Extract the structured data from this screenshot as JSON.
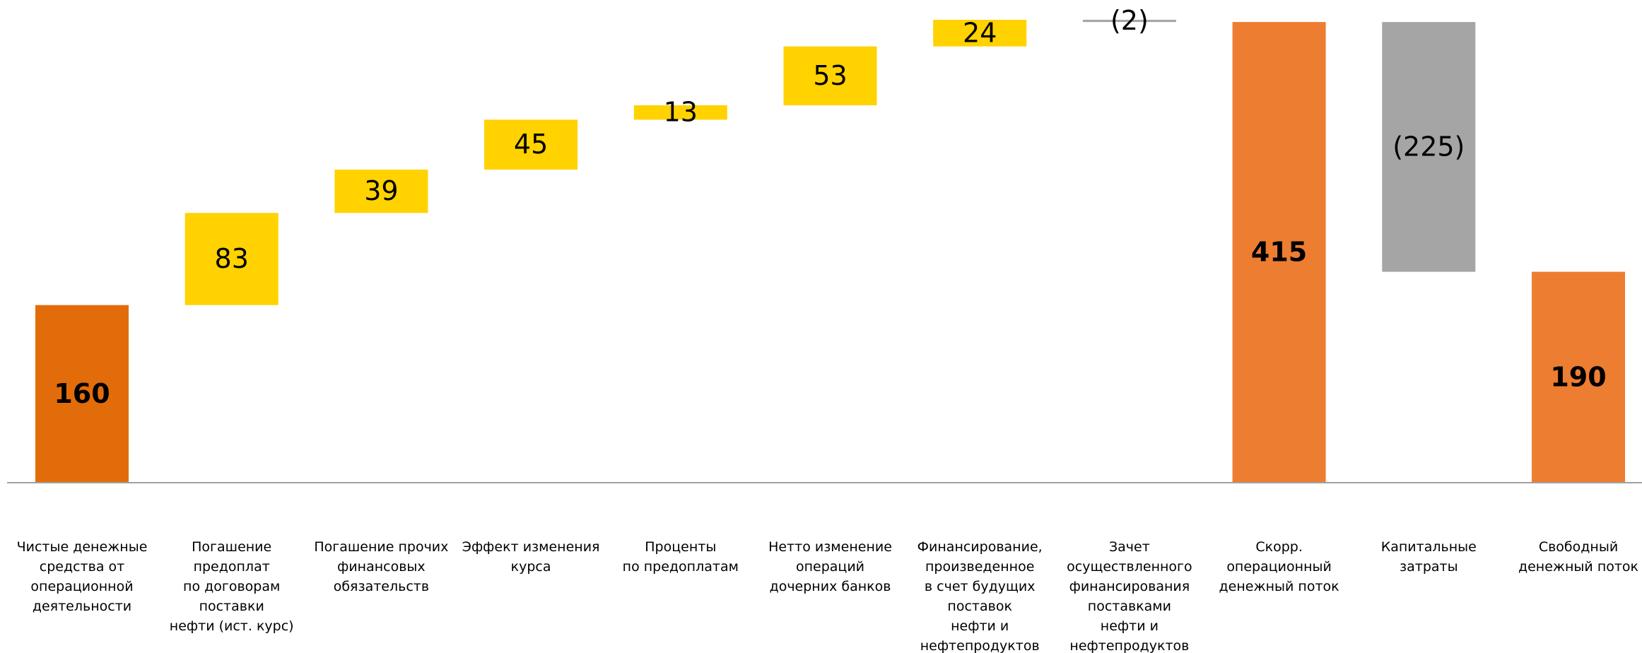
{
  "chart_data": {
    "type": "waterfall",
    "categories": [
      "Чистые денежные\nсредства от\nоперационной\nдеятельности",
      "Погашение\nпредоплат\nпо договорам\nпоставки\nнефти (ист. курс)",
      "Погашение прочих\nфинансовых\nобязательств",
      "Эффект изменения\nкурса",
      "Проценты\nпо предоплатам",
      "Нетто изменение\nопераций\nдочерних банков",
      "Финансирование,\nпроизведенное\nв счет будущих\nпоставок\nнефти и\nнефтепродуктов",
      "Зачет\nосуществленного\nфинансирования\nпоставками\nнефти и\nнефтепродуктов",
      "Скорр.\nоперационный\nденежный поток",
      "Капитальные затраты",
      "Свободный\nденежный поток"
    ],
    "values": [
      160,
      83,
      39,
      45,
      13,
      53,
      24,
      -2,
      415,
      -225,
      190
    ],
    "value_labels": [
      "160",
      "83",
      "39",
      "45",
      "13",
      "53",
      "24",
      "(2)",
      "415",
      "(225)",
      "190"
    ],
    "measure": [
      "absolute",
      "relative",
      "relative",
      "relative",
      "relative",
      "relative",
      "relative",
      "relative",
      "total",
      "relative",
      "total"
    ],
    "colors": [
      "#e36c0a",
      "#ffd200",
      "#ffd200",
      "#ffd200",
      "#ffd200",
      "#ffd200",
      "#ffd200",
      "#a5a5a5",
      "#ed7d31",
      "#a5a5a5",
      "#ed7d31"
    ]
  }
}
